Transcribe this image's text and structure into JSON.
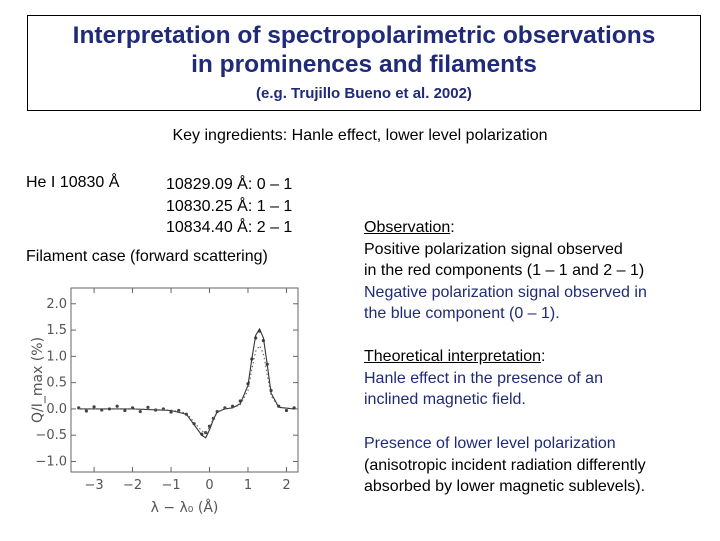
{
  "title": {
    "line1": "Interpretation of spectropolarimetric observations",
    "line2": "in prominences and filaments",
    "ref": "(e.g. Trujillo Bueno et al. 2002)"
  },
  "subtitle": "Key ingredients: Hanle effect, lower level polarization",
  "he_label": "He I 10830 Å",
  "transitions": [
    "10829.09 Å: 0 – 1",
    "10830.25 Å: 1 – 1",
    "10834.40 Å: 2 – 1"
  ],
  "filament_case": "Filament case (forward scattering)",
  "observation": {
    "heading": "Observation",
    "colon": ":",
    "lines": [
      "Positive polarization signal observed",
      "in the red components (1 – 1 and 2 – 1)"
    ],
    "blue_lines": [
      "Negative polarization signal observed in",
      "the blue component (0 – 1)."
    ]
  },
  "theory": {
    "heading": "Theoretical interpretation",
    "colon": ":",
    "lines": [
      "Hanle effect in the presence of an",
      "inclined magnetic field."
    ]
  },
  "lower": {
    "lines": [
      "Presence of lower level polarization",
      "(anisotropic incident radiation differently",
      "absorbed by lower magnetic sublevels)."
    ]
  },
  "colors": {
    "accent": "#1f2a78"
  },
  "chart_data": {
    "type": "line",
    "ylabel": "Q/I_max (%)",
    "xlabel": "λ − λ₀ (Å)",
    "xlim": [
      -3.6,
      2.3
    ],
    "ylim": [
      -1.2,
      2.3
    ],
    "xticks": [
      -3,
      -2,
      -1,
      0,
      1,
      2
    ],
    "xtick_labels": [
      "−3",
      "−2",
      "−1",
      "0",
      "1",
      "2"
    ],
    "yticks": [
      -1.0,
      -0.5,
      0.0,
      0.5,
      1.0,
      1.5,
      2.0
    ],
    "ytick_labels": [
      "−1.0",
      "−0.5",
      "0.0",
      "0.5",
      "1.0",
      "1.5",
      "2.0"
    ],
    "series": [
      {
        "style": "observed-points",
        "x": [
          -3.4,
          -3.2,
          -3.0,
          -2.8,
          -2.6,
          -2.4,
          -2.2,
          -2.0,
          -1.8,
          -1.6,
          -1.4,
          -1.2,
          -1.0,
          -0.8,
          -0.6,
          -0.4,
          -0.2,
          -0.1,
          0.0,
          0.1,
          0.2,
          0.4,
          0.6,
          0.8,
          1.0,
          1.1,
          1.2,
          1.3,
          1.4,
          1.5,
          1.6,
          1.8,
          2.0,
          2.2
        ],
        "y": [
          0.02,
          -0.04,
          0.04,
          -0.02,
          0.0,
          0.05,
          -0.03,
          0.02,
          -0.05,
          0.03,
          -0.02,
          0.0,
          -0.06,
          -0.03,
          -0.1,
          -0.28,
          -0.48,
          -0.45,
          -0.33,
          -0.18,
          -0.05,
          0.02,
          0.05,
          0.15,
          0.48,
          0.95,
          1.35,
          1.48,
          1.3,
          0.85,
          0.35,
          0.05,
          -0.03,
          0.02
        ]
      },
      {
        "style": "model-solid",
        "x": [
          -3.4,
          -2.0,
          -1.0,
          -0.6,
          -0.4,
          -0.2,
          -0.1,
          0.0,
          0.1,
          0.2,
          0.4,
          0.6,
          0.8,
          1.0,
          1.1,
          1.2,
          1.3,
          1.4,
          1.5,
          1.6,
          1.8,
          2.2
        ],
        "y": [
          0.0,
          0.0,
          -0.03,
          -0.1,
          -0.3,
          -0.5,
          -0.55,
          -0.4,
          -0.2,
          -0.06,
          0.0,
          0.02,
          0.1,
          0.45,
          0.95,
          1.4,
          1.52,
          1.35,
          0.85,
          0.3,
          0.03,
          0.0
        ]
      },
      {
        "style": "model-dotted",
        "x": [
          -3.4,
          -2.0,
          -1.0,
          -0.6,
          -0.4,
          -0.2,
          -0.1,
          0.0,
          0.1,
          0.2,
          0.4,
          0.6,
          0.8,
          1.0,
          1.1,
          1.2,
          1.3,
          1.4,
          1.5,
          1.6,
          1.8,
          2.2
        ],
        "y": [
          0.0,
          0.0,
          -0.02,
          -0.08,
          -0.25,
          -0.42,
          -0.45,
          -0.35,
          -0.18,
          -0.05,
          0.0,
          0.02,
          0.08,
          0.35,
          0.75,
          1.1,
          1.2,
          1.05,
          0.65,
          0.25,
          0.03,
          0.0
        ]
      }
    ]
  }
}
